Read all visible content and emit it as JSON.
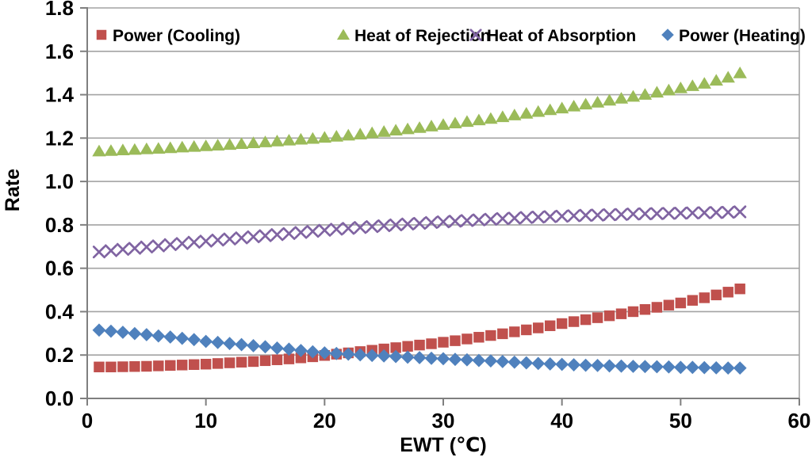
{
  "chart_data": {
    "type": "scatter",
    "title": "",
    "xlabel": "EWT (℃)",
    "ylabel": "Rate",
    "xlim": [
      0,
      60
    ],
    "ylim": [
      0,
      1.8
    ],
    "x_ticks": [
      "0",
      "10",
      "20",
      "30",
      "40",
      "50",
      "60"
    ],
    "x_tick_values": [
      0,
      10,
      20,
      30,
      40,
      50,
      60
    ],
    "y_ticks": [
      "0.0",
      "0.2",
      "0.4",
      "0.6",
      "0.8",
      "1.0",
      "1.2",
      "1.4",
      "1.6",
      "1.8"
    ],
    "y_tick_values": [
      0,
      0.2,
      0.4,
      0.6,
      0.8,
      1.0,
      1.2,
      1.4,
      1.6,
      1.8
    ],
    "grid": "horizontal",
    "legend_position": "top-inside",
    "x": [
      1,
      2,
      3,
      4,
      5,
      6,
      7,
      8,
      9,
      10,
      11,
      12,
      13,
      14,
      15,
      16,
      17,
      18,
      19,
      20,
      21,
      22,
      23,
      24,
      25,
      26,
      27,
      28,
      29,
      30,
      31,
      32,
      33,
      34,
      35,
      36,
      37,
      38,
      39,
      40,
      41,
      42,
      43,
      44,
      45,
      46,
      47,
      48,
      49,
      50,
      51,
      52,
      53,
      54,
      55
    ],
    "series": [
      {
        "name": "Power (Cooling)",
        "marker": "square",
        "color": "#C0504D",
        "values": [
          0.145,
          0.145,
          0.146,
          0.147,
          0.148,
          0.15,
          0.152,
          0.154,
          0.156,
          0.158,
          0.161,
          0.164,
          0.167,
          0.17,
          0.174,
          0.178,
          0.182,
          0.187,
          0.192,
          0.198,
          0.204,
          0.21,
          0.216,
          0.222,
          0.228,
          0.234,
          0.24,
          0.246,
          0.252,
          0.259,
          0.266,
          0.274,
          0.282,
          0.29,
          0.298,
          0.307,
          0.316,
          0.325,
          0.335,
          0.345,
          0.354,
          0.363,
          0.372,
          0.381,
          0.39,
          0.4,
          0.41,
          0.42,
          0.43,
          0.44,
          0.452,
          0.464,
          0.477,
          0.49,
          0.505
        ]
      },
      {
        "name": "Heat of Rejection",
        "marker": "triangle",
        "color": "#9BBB59",
        "values": [
          1.14,
          1.142,
          1.145,
          1.147,
          1.15,
          1.152,
          1.155,
          1.158,
          1.161,
          1.164,
          1.167,
          1.17,
          1.174,
          1.178,
          1.182,
          1.186,
          1.19,
          1.194,
          1.198,
          1.203,
          1.208,
          1.213,
          1.218,
          1.224,
          1.23,
          1.236,
          1.242,
          1.248,
          1.255,
          1.262,
          1.269,
          1.276,
          1.283,
          1.29,
          1.298,
          1.306,
          1.314,
          1.322,
          1.33,
          1.338,
          1.347,
          1.356,
          1.365,
          1.374,
          1.383,
          1.392,
          1.401,
          1.411,
          1.421,
          1.431,
          1.441,
          1.452,
          1.466,
          1.48,
          1.5
        ]
      },
      {
        "name": "Heat of Absorption",
        "marker": "x",
        "color": "#8064A2",
        "values": [
          0.675,
          0.681,
          0.687,
          0.692,
          0.698,
          0.703,
          0.709,
          0.714,
          0.72,
          0.725,
          0.73,
          0.735,
          0.74,
          0.745,
          0.75,
          0.755,
          0.76,
          0.765,
          0.77,
          0.775,
          0.78,
          0.784,
          0.788,
          0.792,
          0.796,
          0.8,
          0.804,
          0.807,
          0.811,
          0.814,
          0.817,
          0.82,
          0.823,
          0.826,
          0.829,
          0.831,
          0.834,
          0.836,
          0.838,
          0.84,
          0.842,
          0.844,
          0.845,
          0.847,
          0.848,
          0.85,
          0.851,
          0.852,
          0.853,
          0.854,
          0.855,
          0.856,
          0.857,
          0.858,
          0.86
        ]
      },
      {
        "name": "Power (Heating)",
        "marker": "diamond",
        "color": "#4F81BD",
        "values": [
          0.315,
          0.31,
          0.305,
          0.299,
          0.294,
          0.288,
          0.283,
          0.277,
          0.271,
          0.263,
          0.258,
          0.253,
          0.248,
          0.243,
          0.238,
          0.232,
          0.227,
          0.221,
          0.215,
          0.21,
          0.207,
          0.204,
          0.201,
          0.198,
          0.196,
          0.193,
          0.19,
          0.188,
          0.185,
          0.183,
          0.18,
          0.178,
          0.175,
          0.173,
          0.17,
          0.167,
          0.164,
          0.161,
          0.159,
          0.157,
          0.155,
          0.153,
          0.152,
          0.15,
          0.149,
          0.148,
          0.147,
          0.146,
          0.145,
          0.143,
          0.143,
          0.142,
          0.141,
          0.14,
          0.14
        ]
      }
    ],
    "draw_order": [
      1,
      2,
      0,
      3
    ]
  },
  "colors": {
    "axis": "#7F7F7F",
    "gridline": "#A3A3A3",
    "text": "#000000",
    "background": "#FFFFFF"
  }
}
